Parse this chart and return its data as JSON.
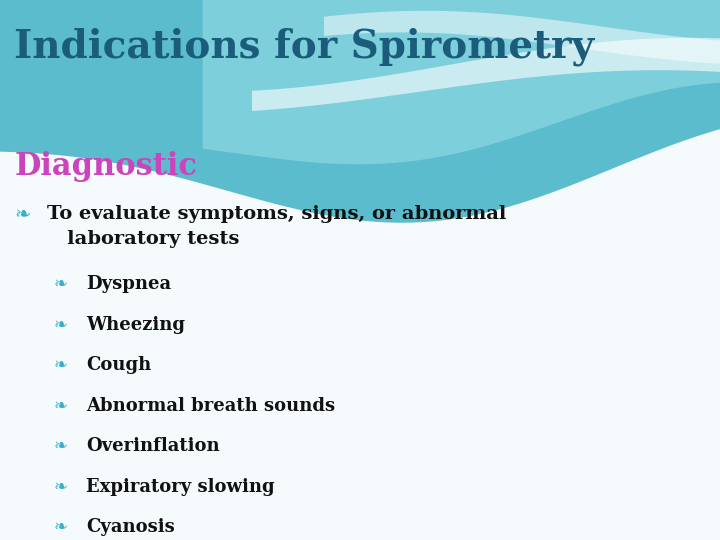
{
  "title": "Indications for Spirometry",
  "title_color": "#1a5c7a",
  "title_fontsize": 28,
  "subtitle": "Diagnostic",
  "subtitle_color": "#cc44bb",
  "subtitle_fontsize": 22,
  "bg_color": "#f5fbfd",
  "teal_main": "#5abccc",
  "teal_light": "#8dd8e4",
  "teal_lighter": "#aee6ef",
  "white_wave": "#ffffff",
  "bullet_color": "#3ab0c8",
  "level1_text": "To evaluate symptoms, signs, or abnormal\n   laboratory tests",
  "level1_color": "#111111",
  "level1_fontsize": 14,
  "level2_items": [
    "Dyspnea",
    "Wheezing",
    "Cough",
    "Abnormal breath sounds",
    "Overinflation",
    "Expiratory slowing",
    "Cyanosis"
  ],
  "level2_color": "#111111",
  "level2_fontsize": 13
}
